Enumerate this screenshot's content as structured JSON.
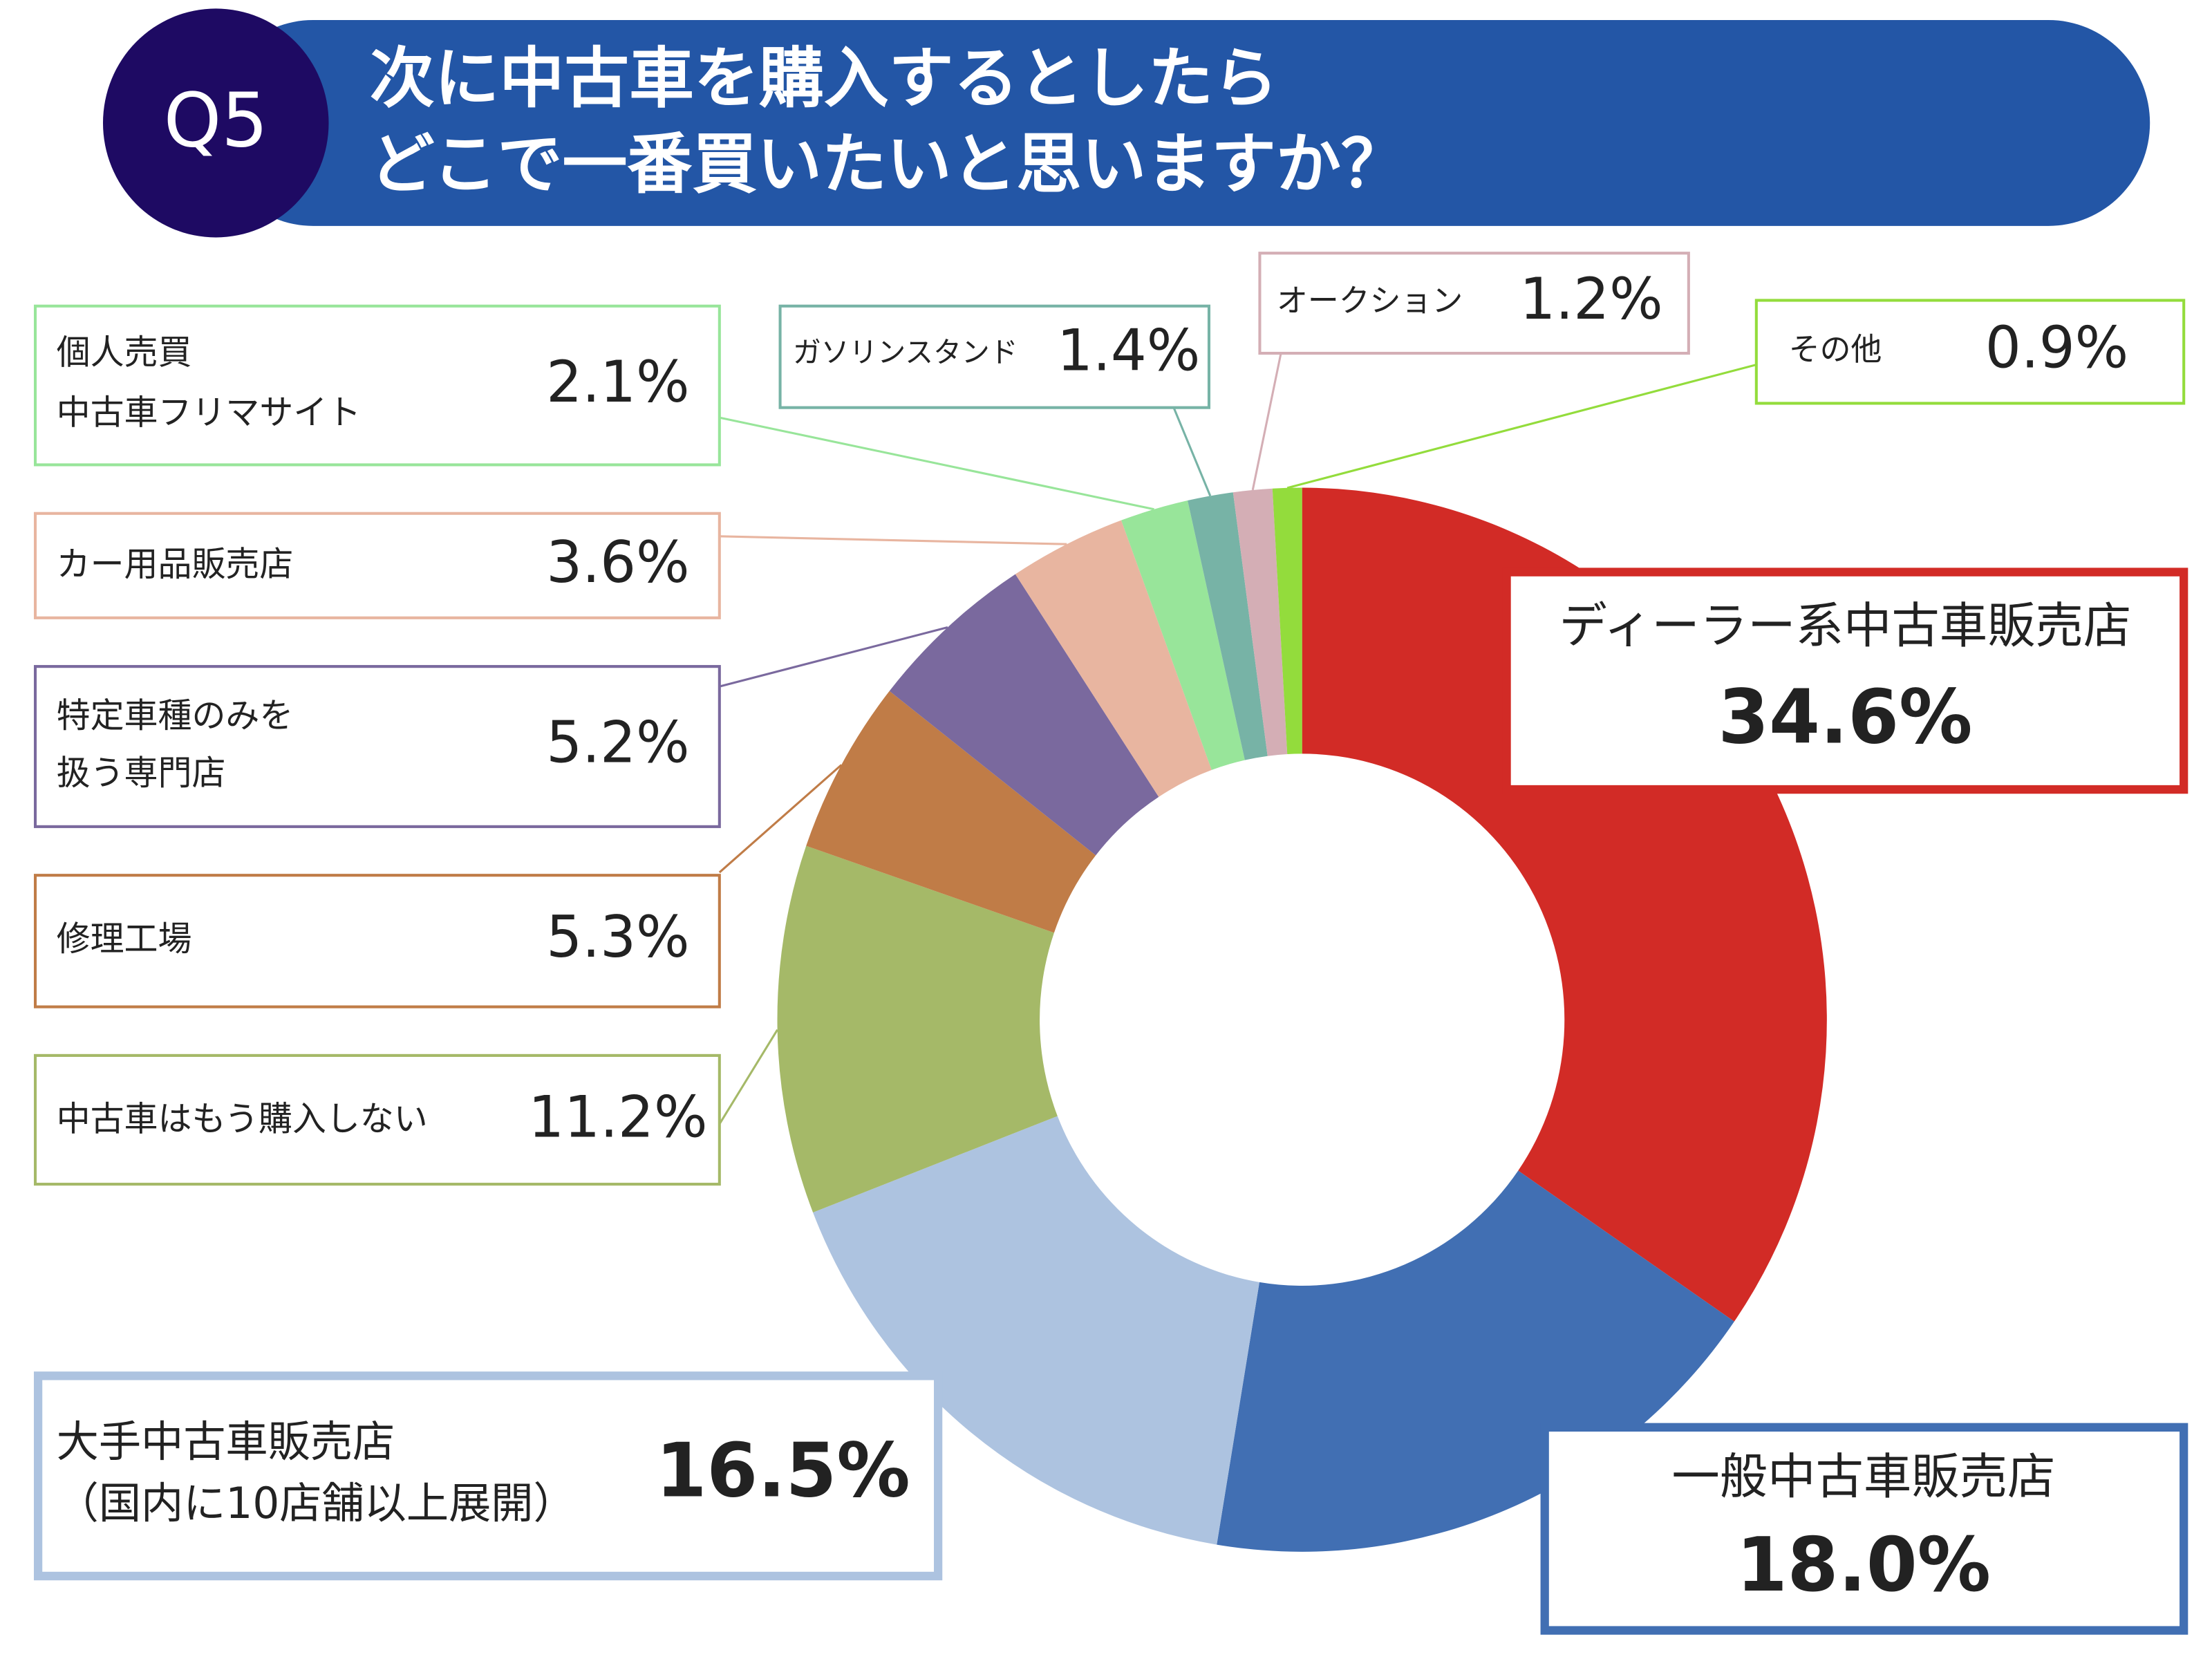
{
  "chart_data": {
    "type": "pie",
    "badge": "Q5",
    "title": [
      "次に中古車を購入するとしたら",
      "どこで一番買いたいと思いますか？"
    ],
    "categories": [
      [
        "ディーラー系中古車販売店"
      ],
      [
        "一般中古車販売店"
      ],
      [
        "大手中古車販売店",
        "（国内に10店舗以上展開）"
      ],
      [
        "中古車はもう購入しない"
      ],
      [
        "修理工場"
      ],
      [
        "特定車種のみを",
        "扱う専門店"
      ],
      [
        "カー用品販売店"
      ],
      [
        "個人売買",
        "中古車フリマサイト"
      ],
      [
        "ガソリンスタンド"
      ],
      [
        "オークション"
      ],
      [
        "その他"
      ]
    ],
    "values": [
      34.6,
      18.0,
      16.5,
      11.2,
      5.3,
      5.2,
      3.6,
      2.1,
      1.4,
      1.2,
      0.9
    ],
    "value_labels": [
      "34.6%",
      "18.0%",
      "16.5%",
      "11.2%",
      "5.3%",
      "5.2%",
      "3.6%",
      "2.1%",
      "1.4%",
      "1.2%",
      "0.9%"
    ],
    "colors": [
      "#d22b26",
      "#416fb3",
      "#adc3e0",
      "#a5b968",
      "#c07c47",
      "#7a699e",
      "#e8b5a0",
      "#98e59a",
      "#77b3a6",
      "#d4aeb5",
      "#93dc3c"
    ]
  }
}
